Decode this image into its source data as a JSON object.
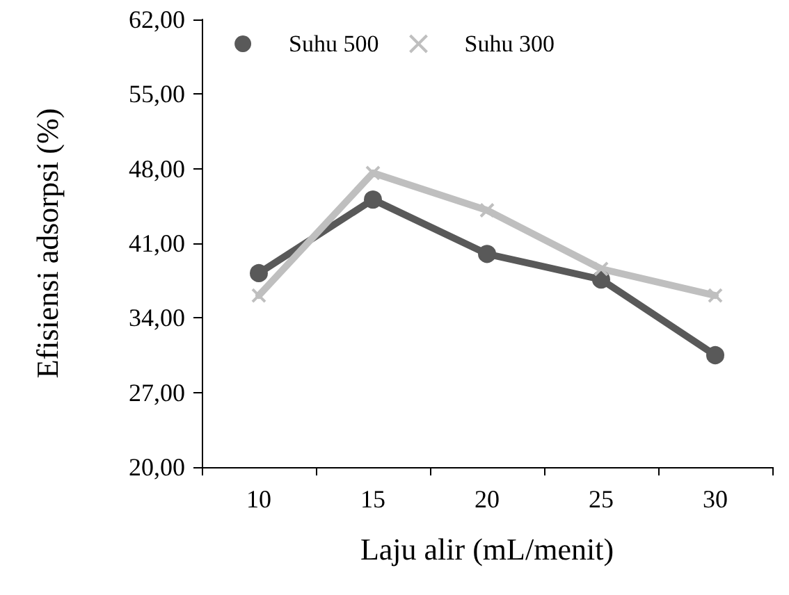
{
  "chart_data": {
    "type": "line",
    "xlabel": "Laju alir (mL/menit)",
    "ylabel": "Efisiensi adsorpsi (%)",
    "categories": [
      "10",
      "15",
      "20",
      "25",
      "30"
    ],
    "series": [
      {
        "name": "Suhu 500",
        "color": "#595959",
        "marker": "circle",
        "values": [
          38.2,
          45.1,
          40.0,
          37.6,
          30.5
        ]
      },
      {
        "name": "Suhu 300",
        "color": "#bfbfbf",
        "marker": "cross",
        "values": [
          36.1,
          47.6,
          44.1,
          38.6,
          36.1
        ]
      }
    ],
    "ylim": [
      20,
      62
    ],
    "yticks": [
      {
        "value": 20,
        "label": "20,00"
      },
      {
        "value": 27,
        "label": "27,00"
      },
      {
        "value": 34,
        "label": "34,00"
      },
      {
        "value": 41,
        "label": "41,00"
      },
      {
        "value": 48,
        "label": "48,00"
      },
      {
        "value": 55,
        "label": "55,00"
      },
      {
        "value": 62,
        "label": "62,00"
      }
    ],
    "grid": false,
    "legend": "top",
    "line_style": "solid"
  }
}
